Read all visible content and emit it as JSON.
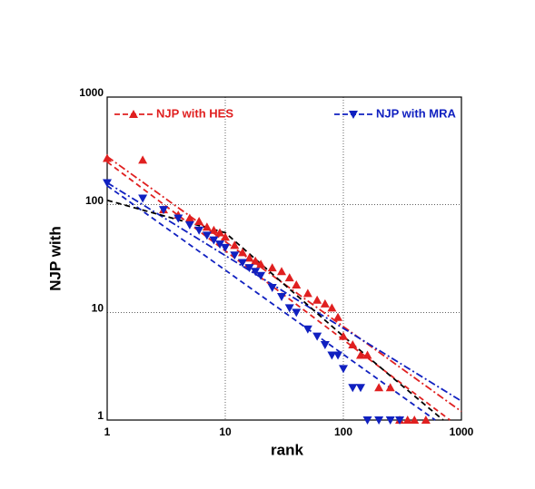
{
  "chart_data": {
    "type": "scatter",
    "x_label": "rank",
    "y_label": "NJP with",
    "log_x": true,
    "log_y": true,
    "grid": true,
    "legend": "top",
    "xlim": [
      1,
      1000
    ],
    "ylim": [
      1,
      1000
    ],
    "xticks": [
      1,
      10,
      100,
      1000
    ],
    "yticks": [
      1,
      10,
      100,
      1000
    ],
    "series": [
      {
        "name": "NJP with HES",
        "color": "#e02020",
        "marker": "triangle-up",
        "x": [
          1,
          2,
          3,
          4,
          5,
          6,
          7,
          8,
          9,
          10,
          12,
          14,
          16,
          18,
          20,
          25,
          30,
          35,
          40,
          50,
          60,
          70,
          80,
          90,
          100,
          120,
          140,
          160,
          200,
          250,
          300,
          350,
          400,
          500
        ],
        "values": [
          270,
          260,
          90,
          80,
          75,
          70,
          62,
          58,
          55,
          50,
          42,
          36,
          32,
          30,
          28,
          26,
          24,
          21,
          18,
          15,
          13,
          12,
          11,
          9,
          6,
          5,
          4,
          4,
          2,
          2,
          1,
          1,
          1,
          1
        ]
      },
      {
        "name": "NJP with MRA",
        "color": "#1020c0",
        "marker": "triangle-down",
        "x": [
          1,
          2,
          3,
          4,
          5,
          6,
          7,
          8,
          9,
          10,
          12,
          14,
          16,
          18,
          20,
          25,
          30,
          35,
          40,
          50,
          60,
          70,
          80,
          90,
          100,
          120,
          140,
          160,
          200,
          250,
          300
        ],
        "values": [
          160,
          115,
          90,
          75,
          65,
          58,
          52,
          47,
          43,
          40,
          34,
          29,
          26,
          24,
          22,
          17,
          14,
          11,
          10,
          7,
          6,
          5,
          4,
          4,
          3,
          2,
          2,
          1,
          1,
          1,
          1
        ]
      }
    ],
    "fits": [
      {
        "color": "#e02020",
        "dash": "8 3 2 3",
        "x": [
          1,
          1000
        ],
        "values": [
          280,
          1.2
        ]
      },
      {
        "color": "#e02020",
        "dash": "6 4",
        "x": [
          1,
          800
        ],
        "values": [
          250,
          1
        ]
      },
      {
        "color": "#1020c0",
        "dash": "8 3 2 3",
        "x": [
          1,
          1000
        ],
        "values": [
          160,
          1.5
        ]
      },
      {
        "color": "#1020c0",
        "dash": "6 4",
        "x": [
          1,
          600
        ],
        "values": [
          150,
          1
        ]
      },
      {
        "color": "#000000",
        "dash": "6 4",
        "x": [
          1,
          10,
          100,
          700
        ],
        "values": [
          110,
          55,
          6,
          1
        ]
      }
    ]
  }
}
